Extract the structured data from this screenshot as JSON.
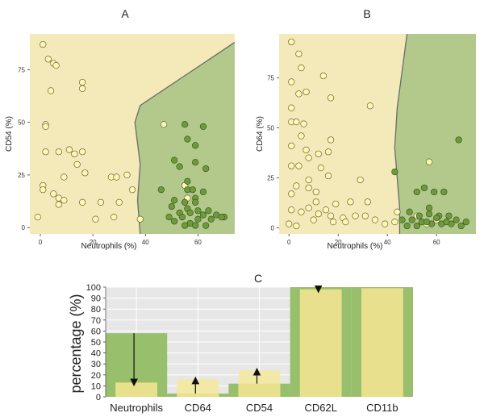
{
  "colors": {
    "yellow_region": "#f4e9b8",
    "green_region": "#b3c98c",
    "boundary": "#6b6b6b",
    "yellow_point": "#fff6b0",
    "green_point": "#6f9a3c",
    "grid_bg": "#e7e7e7",
    "bar_green": "#98bf6b",
    "bar_yellow": "#e8e08c",
    "bar_yellow_light": "#f3e9a6"
  },
  "chart_data": [
    {
      "panel": "A",
      "type": "scatter",
      "title": "A",
      "xlabel": "Neutrophils (%)",
      "ylabel": "CD54 (%)",
      "xlim": [
        -4,
        74
      ],
      "ylim": [
        -3,
        92
      ],
      "xticks": [
        0,
        20,
        40,
        60
      ],
      "yticks": [
        0,
        25,
        50,
        75
      ],
      "boundary": [
        [
          74,
          88
        ],
        [
          38,
          58
        ],
        [
          36,
          50
        ],
        [
          38,
          30
        ],
        [
          37,
          13
        ],
        [
          38,
          -3
        ]
      ],
      "yellow_points": [
        [
          1,
          87
        ],
        [
          3,
          80
        ],
        [
          5,
          78
        ],
        [
          6,
          77
        ],
        [
          4,
          65
        ],
        [
          16,
          69
        ],
        [
          16,
          66
        ],
        [
          2,
          49
        ],
        [
          2,
          48
        ],
        [
          7,
          36
        ],
        [
          2,
          36
        ],
        [
          11,
          37
        ],
        [
          13,
          35
        ],
        [
          16,
          36
        ],
        [
          14,
          30
        ],
        [
          17,
          26
        ],
        [
          27,
          24
        ],
        [
          29,
          24
        ],
        [
          33,
          25
        ],
        [
          35,
          18
        ],
        [
          9,
          24
        ],
        [
          1,
          20
        ],
        [
          1,
          18
        ],
        [
          5,
          16
        ],
        [
          7,
          14
        ],
        [
          7,
          11
        ],
        [
          9,
          13
        ],
        [
          16,
          12
        ],
        [
          23,
          12
        ],
        [
          30,
          12
        ],
        [
          21,
          4
        ],
        [
          28,
          5
        ],
        [
          38,
          4
        ],
        [
          -1,
          5
        ],
        [
          55,
          20
        ],
        [
          56,
          14
        ],
        [
          47,
          49
        ]
      ],
      "green_points": [
        [
          55,
          49
        ],
        [
          62,
          48
        ],
        [
          56,
          42
        ],
        [
          59,
          39
        ],
        [
          51,
          32
        ],
        [
          59,
          31
        ],
        [
          53,
          29
        ],
        [
          63,
          28
        ],
        [
          56,
          22
        ],
        [
          56,
          18
        ],
        [
          58,
          18
        ],
        [
          62,
          17
        ],
        [
          59,
          14
        ],
        [
          46,
          18
        ],
        [
          51,
          13
        ],
        [
          55,
          12
        ],
        [
          59,
          12
        ],
        [
          50,
          10
        ],
        [
          56,
          9
        ],
        [
          60,
          8
        ],
        [
          64,
          8
        ],
        [
          53,
          7
        ],
        [
          57,
          7
        ],
        [
          62,
          6
        ],
        [
          67,
          6
        ],
        [
          49,
          5
        ],
        [
          54,
          5
        ],
        [
          60,
          4
        ],
        [
          65,
          4
        ],
        [
          70,
          5
        ],
        [
          51,
          3
        ],
        [
          57,
          2
        ],
        [
          55,
          1
        ],
        [
          59,
          1
        ],
        [
          63,
          1
        ],
        [
          69,
          5
        ]
      ]
    },
    {
      "panel": "B",
      "type": "scatter",
      "title": "B",
      "xlabel": "Neutrophils (%)",
      "ylabel": "CD64 (%)",
      "xlim": [
        -4,
        76
      ],
      "ylim": [
        -3,
        97
      ],
      "xticks": [
        0,
        20,
        40,
        60
      ],
      "yticks": [
        0,
        25,
        50,
        75
      ],
      "boundary": [
        [
          48,
          97
        ],
        [
          44,
          60
        ],
        [
          43,
          40
        ],
        [
          44,
          25
        ],
        [
          45,
          10
        ],
        [
          45,
          -3
        ]
      ],
      "yellow_points": [
        [
          1,
          93
        ],
        [
          4,
          87
        ],
        [
          5,
          80
        ],
        [
          1,
          73
        ],
        [
          4,
          67
        ],
        [
          7,
          68
        ],
        [
          14,
          76
        ],
        [
          17,
          65
        ],
        [
          1,
          60
        ],
        [
          33,
          61
        ],
        [
          1,
          53
        ],
        [
          3,
          53
        ],
        [
          6,
          52
        ],
        [
          5,
          46
        ],
        [
          17,
          44
        ],
        [
          12,
          37
        ],
        [
          16,
          38
        ],
        [
          1,
          41
        ],
        [
          7,
          39
        ],
        [
          1,
          31
        ],
        [
          4,
          31
        ],
        [
          8,
          35
        ],
        [
          13,
          30
        ],
        [
          8,
          24
        ],
        [
          16,
          26
        ],
        [
          29,
          24
        ],
        [
          8,
          20
        ],
        [
          11,
          18
        ],
        [
          1,
          17
        ],
        [
          3,
          21
        ],
        [
          11,
          13
        ],
        [
          19,
          12
        ],
        [
          8,
          10
        ],
        [
          15,
          9
        ],
        [
          25,
          13
        ],
        [
          32,
          13
        ],
        [
          1,
          9
        ],
        [
          5,
          8
        ],
        [
          12,
          7
        ],
        [
          17,
          6
        ],
        [
          22,
          5
        ],
        [
          27,
          6
        ],
        [
          31,
          6
        ],
        [
          35,
          4
        ],
        [
          39,
          2
        ],
        [
          43,
          3
        ],
        [
          44,
          8
        ],
        [
          0,
          2
        ],
        [
          3,
          1
        ],
        [
          10,
          4
        ],
        [
          18,
          3
        ],
        [
          23,
          3
        ],
        [
          52,
          6
        ],
        [
          56,
          2
        ],
        [
          57,
          33
        ],
        [
          60,
          4
        ]
      ],
      "green_points": [
        [
          69,
          44
        ],
        [
          43,
          28
        ],
        [
          52,
          18
        ],
        [
          55,
          20
        ],
        [
          59,
          18
        ],
        [
          63,
          18
        ],
        [
          57,
          10
        ],
        [
          49,
          8
        ],
        [
          53,
          6
        ],
        [
          57,
          7
        ],
        [
          61,
          6
        ],
        [
          65,
          6
        ],
        [
          68,
          4
        ],
        [
          50,
          4
        ],
        [
          54,
          3
        ],
        [
          58,
          2
        ],
        [
          62,
          2
        ],
        [
          66,
          2
        ],
        [
          70,
          1
        ],
        [
          72,
          3
        ],
        [
          60,
          5
        ],
        [
          46,
          4
        ],
        [
          52,
          1
        ],
        [
          48,
          1
        ],
        [
          64,
          3
        ],
        [
          56,
          3
        ]
      ]
    },
    {
      "panel": "C",
      "type": "bar",
      "title": "C",
      "xlabel": "",
      "ylabel": "percentage (%)",
      "ylim": [
        0,
        100
      ],
      "yticks": [
        0,
        10,
        20,
        30,
        40,
        50,
        60,
        70,
        80,
        90,
        100
      ],
      "categories": [
        "Neutrophils",
        "CD64",
        "CD54",
        "CD62L",
        "CD11b"
      ],
      "series": [
        {
          "name": "green",
          "values": [
            58,
            3,
            12,
            100,
            100
          ]
        },
        {
          "name": "yellow",
          "values": [
            13,
            3,
            12,
            98,
            99
          ]
        },
        {
          "name": "yellow_shift",
          "values": [
            13,
            16,
            24,
            98,
            99
          ]
        }
      ],
      "arrows": [
        {
          "category": "Neutrophils",
          "from": 58,
          "to": 13
        },
        {
          "category": "CD64",
          "from": 3,
          "to": 15
        },
        {
          "category": "CD54",
          "from": 12,
          "to": 23
        },
        {
          "category": "CD62L",
          "from": 100,
          "to": 98
        }
      ]
    }
  ]
}
